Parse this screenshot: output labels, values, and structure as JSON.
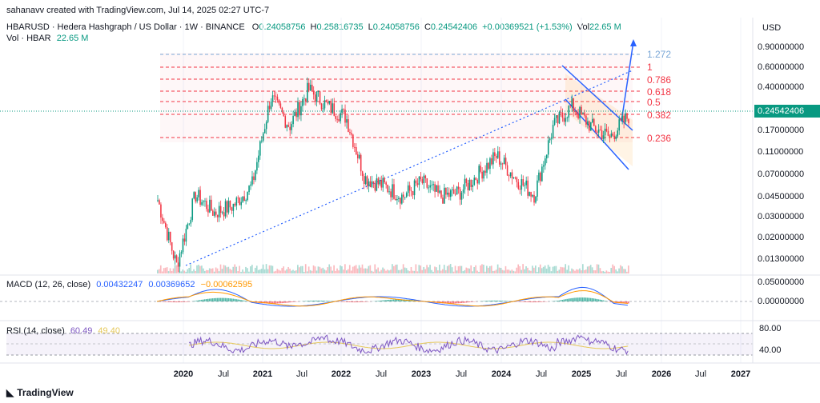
{
  "watermark": "sahanavv created with TradingView.com, Jul 14, 2025 02:27 UTC-7",
  "currency": "USD",
  "header": {
    "symbol": "HBARUSD · Hedera Hashgraph / US Dollar · 1W · BINANCE",
    "open_label": "O",
    "open": "0.24058756",
    "high_label": "H",
    "high": "0.25816735",
    "low_label": "L",
    "low": "0.24058756",
    "close_label": "C",
    "close": "0.24542406",
    "change": "+0.00369521 (+1.53%)",
    "vol_label": "Vol",
    "vol": "22.65 M"
  },
  "vol_line": {
    "label": "Vol · HBAR",
    "value": "22.65 M"
  },
  "last_price": "0.24542406",
  "colors": {
    "up": "#089981",
    "down": "#f23645",
    "fib": "#f23645",
    "fib_top": "#7aa7d6",
    "macd": "#2962ff",
    "signal": "#ff9800",
    "rsi": "#7e57c2",
    "rsi_ma": "#e5c85a"
  },
  "price_axis": [
    "0.90000000",
    "0.60000000",
    "0.40000000",
    "0.24542406",
    "0.17000000",
    "0.11000000",
    "0.07000000",
    "0.04500000",
    "0.03000000",
    "0.02000000",
    "0.01300000"
  ],
  "fib_levels": [
    {
      "label": "1.272"
    },
    {
      "label": "1"
    },
    {
      "label": "0.786"
    },
    {
      "label": "0.618"
    },
    {
      "label": "0.5"
    },
    {
      "label": "0.382"
    },
    {
      "label": "0.236"
    }
  ],
  "macd": {
    "title": "MACD (12, 26, close)",
    "v1": "0.00432247",
    "v2": "0.00369652",
    "v3": "−0.00062595",
    "axis": [
      "0.05000000",
      "0.00000000"
    ]
  },
  "rsi": {
    "title": "RSI (14, close)",
    "v1": "60.49",
    "v2": "49.40",
    "axis": [
      "80.00",
      "40.00"
    ]
  },
  "x_axis": [
    {
      "label": "2020",
      "year": true
    },
    {
      "label": "Jul",
      "year": false
    },
    {
      "label": "2021",
      "year": true
    },
    {
      "label": "Jul",
      "year": false
    },
    {
      "label": "2022",
      "year": true
    },
    {
      "label": "Jul",
      "year": false
    },
    {
      "label": "2023",
      "year": true
    },
    {
      "label": "Jul",
      "year": false
    },
    {
      "label": "2024",
      "year": true
    },
    {
      "label": "Jul",
      "year": false
    },
    {
      "label": "2025",
      "year": true
    },
    {
      "label": "Jul",
      "year": false
    },
    {
      "label": "2026",
      "year": true
    },
    {
      "label": "Jul",
      "year": false
    },
    {
      "label": "2027",
      "year": true
    }
  ],
  "brand": "TradingView",
  "chart_data": {
    "type": "line",
    "title": "HBARUSD · Hedera Hashgraph / US Dollar · 1W · BINANCE",
    "x": [
      "2019-10",
      "2020-01",
      "2020-04",
      "2020-07",
      "2020-10",
      "2021-01",
      "2021-04",
      "2021-07",
      "2021-09",
      "2021-12",
      "2022-03",
      "2022-06",
      "2022-09",
      "2022-12",
      "2023-03",
      "2023-06",
      "2023-09",
      "2023-12",
      "2024-03",
      "2024-06",
      "2024-09",
      "2024-11",
      "2025-01",
      "2025-03",
      "2025-05",
      "2025-07"
    ],
    "series": [
      {
        "values": [
          0.045,
          0.012,
          0.05,
          0.035,
          0.04,
          0.06,
          0.36,
          0.2,
          0.42,
          0.3,
          0.24,
          0.07,
          0.06,
          0.048,
          0.065,
          0.048,
          0.052,
          0.075,
          0.11,
          0.07,
          0.05,
          0.2,
          0.3,
          0.2,
          0.16,
          0.245
        ]
      }
    ],
    "log_scale": true,
    "ylim": [
      0.012,
      1.0
    ]
  }
}
